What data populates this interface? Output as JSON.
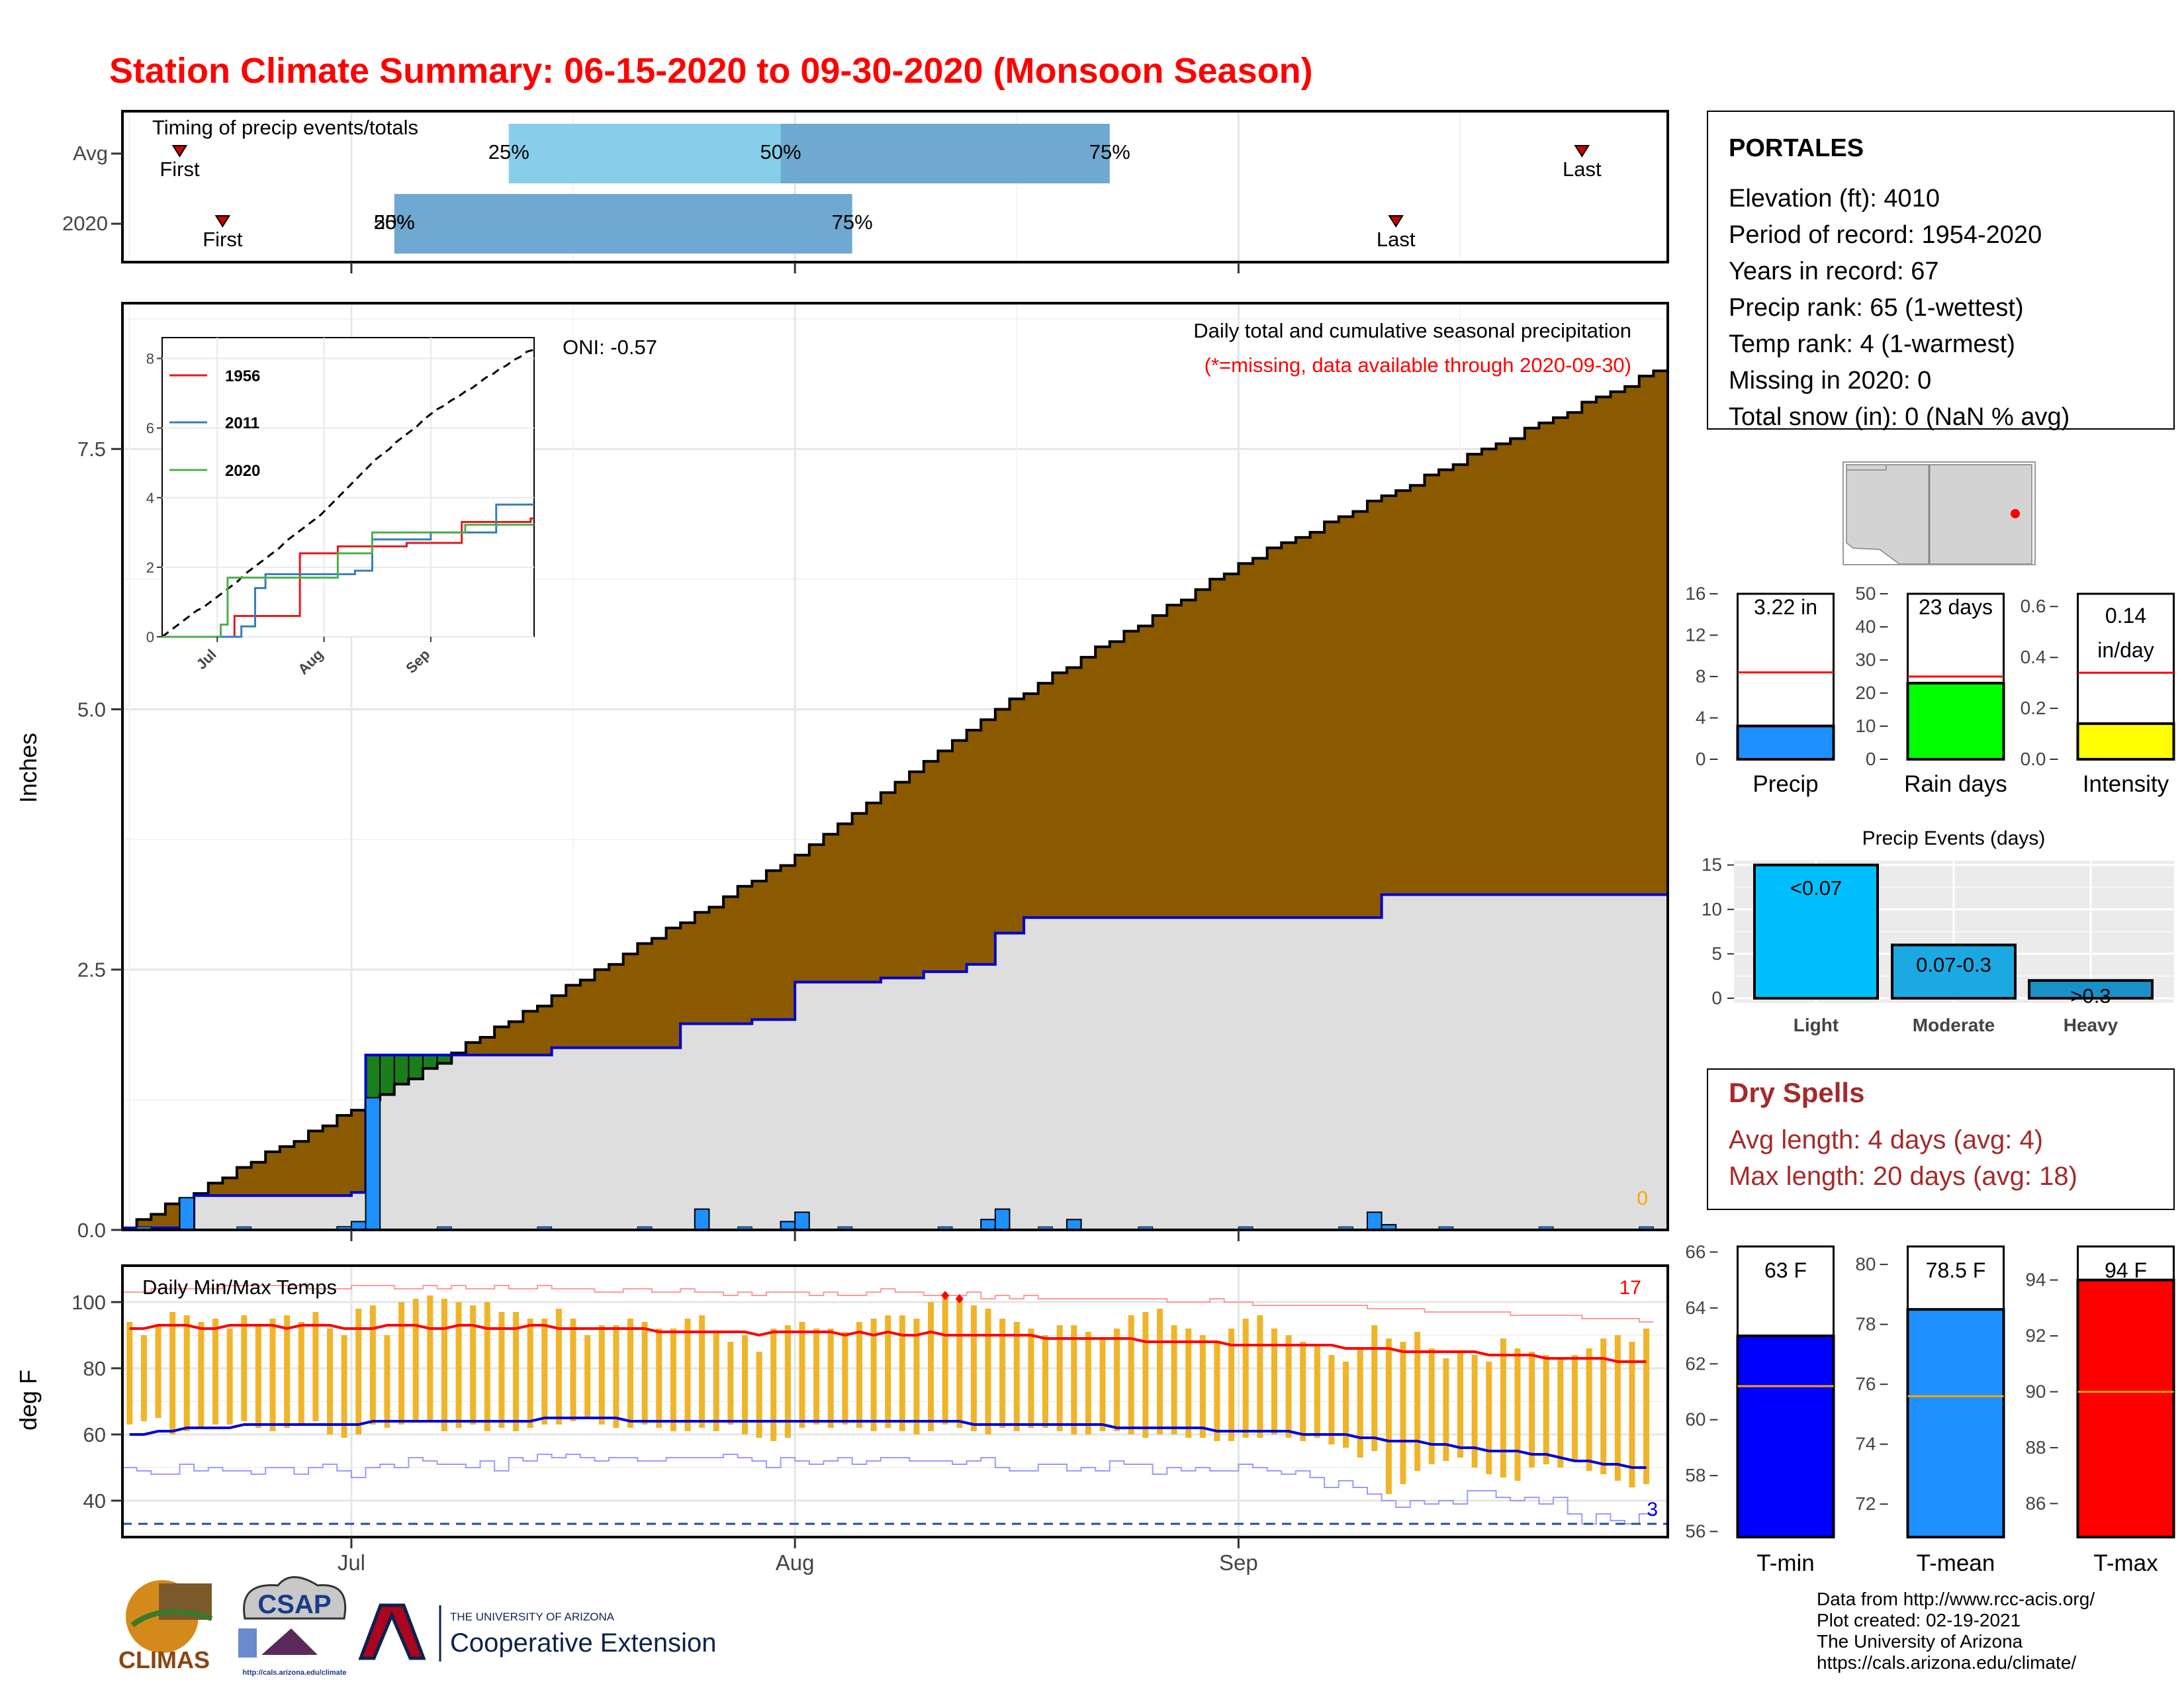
{
  "title": "Station Climate Summary: 06-15-2020 to 09-30-2020 (Monsoon Season)",
  "colors": {
    "title": "#ff0000",
    "climo_fill": "#8b5a00",
    "current_fill": "#dedede",
    "current_line": "#0000cc",
    "excess_fill": "#1a7f1a",
    "daily_bar": "#1e90ff",
    "temp_bar": "#f0b429",
    "tmax_line": "#ff0000",
    "tmin_line": "#0000dd",
    "light_blue": "#87ceeb",
    "mid_blue": "#6fa8d0",
    "dry_spell": "#a52a2a"
  },
  "timing_panel": {
    "title": "Timing of precip events/totals",
    "rows": [
      {
        "label": "Avg",
        "first_label": "First",
        "last_label": "Last",
        "first_date": "2020-06-19",
        "last_date": "2020-09-25",
        "p25_label": "25%",
        "p50_label": "50%",
        "p75_label": "75%",
        "p25_date": "2020-07-12",
        "p50_date": "2020-07-31",
        "p75_date": "2020-08-23"
      },
      {
        "label": "2020",
        "first_label": "First",
        "last_label": "Last",
        "first_date": "2020-06-22",
        "last_date": "2020-09-12",
        "p25_label": "25%",
        "p50_label": "50%",
        "p75_label": "75%",
        "p25_date": "2020-07-04",
        "p50_date": "2020-07-04",
        "p75_date": "2020-08-05"
      }
    ]
  },
  "precip_panel": {
    "ylabel": "Inches",
    "yticks": [
      "0.0",
      "2.5",
      "5.0",
      "7.5"
    ],
    "oni_label": "ONI: -0.57",
    "caption": "Daily total and cumulative seasonal precipitation",
    "missing_note": "(*=missing, data available through 2020-09-30)",
    "missing_count": "0"
  },
  "inset": {
    "yticks": [
      "0",
      "2",
      "4",
      "6",
      "8"
    ],
    "xticks": [
      "Jul",
      "Aug",
      "Sep"
    ],
    "legend": [
      {
        "name": "1956",
        "color": "#e41a1c"
      },
      {
        "name": "2011",
        "color": "#377eb8"
      },
      {
        "name": "2020",
        "color": "#4daf4a"
      }
    ]
  },
  "temp_panel": {
    "ylabel": "deg F",
    "title": "Daily Min/Max Temps",
    "yticks": [
      "40",
      "60",
      "80",
      "100"
    ],
    "record_high_count": "17",
    "record_low_count": "3",
    "xticks": [
      "Jul",
      "Aug",
      "Sep"
    ]
  },
  "station": {
    "name": "PORTALES",
    "lines": [
      "Elevation (ft): 4010",
      "Period of record: 1954-2020",
      "Years in record: 67",
      "Precip rank: 65 (1-wettest)",
      "Temp rank: 4 (1-warmest)",
      "Missing in 2020: 0",
      "Total snow (in): 0 (NaN % avg)"
    ]
  },
  "mini_bars": [
    {
      "xlabel": "Precip",
      "value_label": "3.22 in",
      "yticks": [
        "0",
        "4",
        "8",
        "12",
        "16"
      ]
    },
    {
      "xlabel": "Rain days",
      "value_label": "23 days",
      "yticks": [
        "0",
        "10",
        "20",
        "30",
        "40",
        "50"
      ]
    },
    {
      "xlabel": "Intensity",
      "value_label": "0.14",
      "value_label2": "in/day",
      "yticks": [
        "0.0",
        "0.2",
        "0.4",
        "0.6"
      ]
    }
  ],
  "precip_events": {
    "title": "Precip Events (days)",
    "yticks": [
      "0",
      "5",
      "10",
      "15"
    ],
    "categories": [
      "Light",
      "Moderate",
      "Heavy"
    ],
    "labels": [
      "<0.07",
      "0.07-0.3",
      ">0.3"
    ]
  },
  "dry_spells": {
    "title": "Dry Spells",
    "avg": "Avg length: 4 days (avg: 4)",
    "max": "Max length: 20 days (avg: 18)"
  },
  "temp_bars": [
    {
      "xlabel": "T-min",
      "value_label": "63 F",
      "yticks": [
        "56",
        "58",
        "60",
        "62",
        "64",
        "66"
      ]
    },
    {
      "xlabel": "T-mean",
      "value_label": "78.5 F",
      "yticks": [
        "72",
        "74",
        "76",
        "78",
        "80"
      ]
    },
    {
      "xlabel": "T-max",
      "value_label": "94 F",
      "yticks": [
        "86",
        "88",
        "90",
        "92",
        "94"
      ]
    }
  ],
  "footer": {
    "credit": [
      "Data from http://www.rcc-acis.org/",
      "Plot created: 02-19-2021",
      "The University of Arizona",
      "https://cals.arizona.edu/climate/"
    ],
    "climas": "CLIMAS",
    "csap": "CSAP",
    "csap_url": "http://cals.arizona.edu/climate",
    "ua_small": "THE UNIVERSITY OF ARIZONA",
    "ua_big": "Cooperative Extension"
  },
  "chart_data": [
    {
      "type": "area",
      "title": "Daily total and cumulative seasonal precipitation",
      "ylabel": "Inches",
      "x_start": "2020-06-15",
      "x_end": "2020-09-30",
      "ylim": [
        0,
        8.9
      ],
      "series": [
        {
          "name_hidden": "climatology",
          "x": [
            "2020-06-15",
            "2020-07-01",
            "2020-07-15",
            "2020-08-01",
            "2020-08-15",
            "2020-09-01",
            "2020-09-15",
            "2020-09-30"
          ],
          "values": [
            0.02,
            1.15,
            2.25,
            3.6,
            5.0,
            6.4,
            7.3,
            8.25
          ]
        },
        {
          "name_hidden": "current",
          "x": [
            "2020-06-15",
            "2020-06-19",
            "2020-06-20",
            "2020-07-01",
            "2020-07-02",
            "2020-07-15",
            "2020-07-23",
            "2020-07-24",
            "2020-07-29",
            "2020-08-01",
            "2020-08-07",
            "2020-08-10",
            "2020-08-13",
            "2020-08-15",
            "2020-08-17",
            "2020-08-25",
            "2020-09-10",
            "2020-09-11",
            "2020-09-30"
          ],
          "values": [
            0.02,
            0.02,
            0.33,
            0.36,
            1.68,
            1.75,
            1.75,
            1.98,
            2.02,
            2.38,
            2.42,
            2.48,
            2.55,
            2.85,
            3.0,
            3.0,
            3.0,
            3.22,
            3.22
          ]
        },
        {
          "name_hidden": "daily",
          "x": [
            "2020-06-19",
            "2020-06-30",
            "2020-07-01",
            "2020-07-02",
            "2020-07-25",
            "2020-07-31",
            "2020-08-01",
            "2020-08-14",
            "2020-08-15",
            "2020-08-20",
            "2020-09-10",
            "2020-09-11"
          ],
          "values": [
            0.31,
            0.03,
            0.08,
            1.27,
            0.2,
            0.08,
            0.17,
            0.1,
            0.2,
            0.1,
            0.17,
            0.05
          ]
        }
      ]
    },
    {
      "type": "line",
      "title": "inset",
      "ylim": [
        0,
        8
      ],
      "series": [
        {
          "name": "1956",
          "x": [
            "2020-06-15",
            "2020-07-06",
            "2020-07-20",
            "2020-07-25",
            "2020-08-05",
            "2020-08-25",
            "2020-09-10",
            "2020-09-30"
          ],
          "values": [
            0,
            0.6,
            0.6,
            2.4,
            2.6,
            2.7,
            3.3,
            3.4
          ]
        },
        {
          "name": "2011",
          "x": [
            "2020-06-15",
            "2020-07-08",
            "2020-07-12",
            "2020-07-15",
            "2020-08-10",
            "2020-08-15",
            "2020-09-01",
            "2020-09-20",
            "2020-09-30"
          ],
          "values": [
            0,
            0.3,
            1.4,
            1.8,
            1.9,
            2.8,
            3.0,
            3.8,
            3.8
          ]
        },
        {
          "name": "2020",
          "x": [
            "2020-06-15",
            "2020-07-02",
            "2020-07-04",
            "2020-08-05",
            "2020-08-15",
            "2020-09-11",
            "2020-09-30"
          ],
          "values": [
            0,
            0.35,
            1.7,
            2.4,
            3.0,
            3.22,
            3.22
          ]
        }
      ]
    },
    {
      "type": "bar",
      "title": "Daily Min/Max Temps",
      "ylabel": "deg F",
      "ylim": [
        29,
        111
      ],
      "x_start": "2020-06-15",
      "tmax": [
        94,
        90,
        93,
        97,
        96,
        94,
        95,
        92,
        96,
        93,
        95,
        96,
        94,
        97,
        92,
        90,
        98,
        99,
        90,
        100,
        101,
        102,
        101,
        100,
        99,
        100,
        97,
        97,
        95,
        95,
        98,
        95,
        90,
        93,
        93,
        95,
        94,
        92,
        92,
        95,
        96,
        91,
        88,
        90,
        85,
        92,
        93,
        94,
        92,
        92,
        91,
        94,
        95,
        96,
        96,
        95,
        100,
        102,
        101,
        99,
        98,
        95,
        94,
        92,
        90,
        93,
        93,
        91,
        89,
        92,
        96,
        97,
        98,
        93,
        92,
        90,
        88,
        92,
        95,
        96,
        92,
        90,
        88,
        87,
        84,
        82,
        86,
        93,
        89,
        88,
        91,
        86,
        83,
        85,
        84,
        82,
        89,
        86,
        85,
        84,
        83,
        84,
        86,
        89,
        90,
        88,
        92
      ],
      "tmin": [
        63,
        64,
        65,
        60,
        61,
        62,
        63,
        63,
        64,
        62,
        61,
        62,
        63,
        64,
        60,
        59,
        60,
        63,
        62,
        63,
        64,
        64,
        61,
        62,
        63,
        61,
        62,
        61,
        62,
        63,
        63,
        64,
        65,
        63,
        62,
        62,
        63,
        62,
        61,
        61,
        62,
        61,
        63,
        60,
        59,
        58,
        59,
        62,
        63,
        62,
        63,
        62,
        61,
        62,
        61,
        60,
        61,
        63,
        62,
        61,
        60,
        62,
        61,
        62,
        62,
        61,
        60,
        60,
        61,
        61,
        60,
        59,
        60,
        60,
        59,
        59,
        58,
        58,
        59,
        59,
        60,
        59,
        58,
        59,
        57,
        56,
        53,
        55,
        42,
        45,
        49,
        51,
        52,
        53,
        50,
        48,
        47,
        46,
        50,
        51,
        50,
        52,
        49,
        48,
        46,
        44,
        45
      ],
      "climo_max": [
        92,
        92,
        93,
        93,
        93,
        92,
        92,
        93,
        93,
        93,
        93,
        92,
        93,
        93,
        93,
        92,
        92,
        92,
        93,
        93,
        93,
        92,
        92,
        93,
        93,
        92,
        92,
        92,
        93,
        93,
        92,
        92,
        92,
        92,
        92,
        92,
        92,
        91,
        91,
        91,
        91,
        91,
        91,
        91,
        90,
        91,
        91,
        91,
        91,
        91,
        90,
        91,
        90,
        91,
        90,
        90,
        91,
        90,
        90,
        90,
        90,
        90,
        90,
        90,
        89,
        89,
        89,
        89,
        89,
        89,
        89,
        88,
        88,
        88,
        88,
        88,
        88,
        87,
        87,
        87,
        87,
        87,
        87,
        87,
        87,
        86,
        86,
        86,
        86,
        85,
        85,
        85,
        85,
        85,
        85,
        84,
        84,
        84,
        84,
        83,
        83,
        83,
        83,
        83,
        82,
        82,
        82
      ],
      "climo_min": [
        60,
        60,
        61,
        61,
        62,
        62,
        62,
        62,
        63,
        63,
        63,
        63,
        63,
        63,
        63,
        63,
        63,
        64,
        64,
        64,
        64,
        64,
        64,
        64,
        64,
        64,
        64,
        64,
        64,
        65,
        65,
        65,
        65,
        65,
        65,
        64,
        64,
        64,
        64,
        64,
        64,
        64,
        64,
        64,
        64,
        64,
        64,
        64,
        64,
        64,
        64,
        64,
        64,
        64,
        64,
        64,
        64,
        64,
        64,
        63,
        63,
        63,
        63,
        63,
        63,
        63,
        63,
        63,
        63,
        62,
        62,
        62,
        62,
        62,
        62,
        62,
        61,
        61,
        61,
        61,
        61,
        61,
        60,
        60,
        60,
        60,
        59,
        59,
        58,
        58,
        58,
        57,
        57,
        56,
        56,
        55,
        55,
        55,
        54,
        54,
        53,
        52,
        52,
        51,
        51,
        50,
        50
      ],
      "record_max": [
        103,
        103,
        104,
        104,
        104,
        104,
        104,
        105,
        105,
        105,
        105,
        105,
        105,
        104,
        104,
        104,
        105,
        105,
        105,
        104,
        104,
        105,
        104,
        105,
        104,
        104,
        105,
        104,
        104,
        105,
        104,
        104,
        104,
        103,
        103,
        104,
        104,
        103,
        103,
        104,
        103,
        103,
        102,
        103,
        102,
        103,
        103,
        103,
        102,
        103,
        102,
        102,
        103,
        104,
        103,
        103,
        102,
        102,
        102,
        103,
        101,
        102,
        101,
        102,
        101,
        101,
        101,
        101,
        101,
        101,
        101,
        101,
        101,
        100,
        100,
        100,
        101,
        100,
        100,
        99,
        99,
        99,
        99,
        99,
        99,
        99,
        99,
        98,
        98,
        98,
        98,
        97,
        97,
        97,
        97,
        97,
        97,
        96,
        96,
        96,
        96,
        96,
        95,
        95,
        95,
        95,
        94
      ],
      "record_min": [
        50,
        49,
        48,
        48,
        51,
        49,
        50,
        49,
        49,
        48,
        50,
        50,
        48,
        50,
        51,
        49,
        47,
        50,
        51,
        50,
        53,
        52,
        51,
        51,
        50,
        52,
        49,
        53,
        52,
        54,
        53,
        54,
        53,
        52,
        53,
        53,
        52,
        52,
        53,
        53,
        53,
        53,
        54,
        53,
        52,
        50,
        53,
        52,
        51,
        52,
        53,
        51,
        52,
        53,
        53,
        52,
        52,
        52,
        51,
        52,
        53,
        50,
        49,
        49,
        51,
        51,
        49,
        50,
        49,
        52,
        51,
        51,
        48,
        50,
        49,
        50,
        49,
        49,
        51,
        50,
        49,
        48,
        49,
        47,
        44,
        46,
        44,
        42,
        40,
        38,
        40,
        39,
        40,
        39,
        43,
        43,
        41,
        40,
        41,
        39,
        41,
        36,
        33,
        36,
        34,
        33,
        36
      ]
    },
    {
      "type": "bar",
      "title": "Precip",
      "ylim": [
        0,
        16
      ],
      "values": [
        3.22
      ],
      "normal": 8.4
    },
    {
      "type": "bar",
      "title": "Rain days",
      "ylim": [
        0,
        50
      ],
      "values": [
        23
      ],
      "normal": 25
    },
    {
      "type": "bar",
      "title": "Intensity",
      "ylim": [
        0,
        0.65
      ],
      "values": [
        0.14
      ],
      "normal": 0.34
    },
    {
      "type": "bar",
      "title": "Precip Events (days)",
      "categories": [
        "Light",
        "Moderate",
        "Heavy"
      ],
      "values": [
        15,
        6,
        2
      ],
      "ylim": [
        0,
        15.5
      ]
    },
    {
      "type": "bar",
      "title": "T-min",
      "ylim": [
        55.8,
        66.2
      ],
      "values": [
        63
      ],
      "normal": 61.2
    },
    {
      "type": "bar",
      "title": "T-mean",
      "ylim": [
        70.9,
        80.6
      ],
      "values": [
        78.5
      ],
      "normal": 75.6
    },
    {
      "type": "bar",
      "title": "T-max",
      "ylim": [
        84.8,
        95.2
      ],
      "values": [
        94
      ],
      "normal": 90
    }
  ]
}
